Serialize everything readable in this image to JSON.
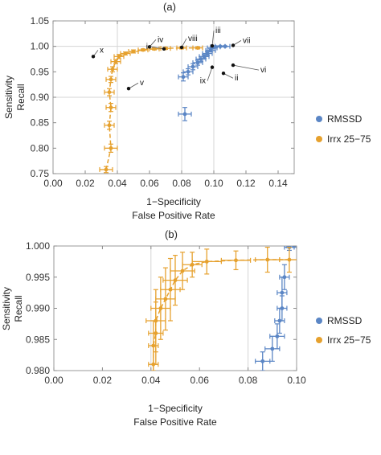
{
  "colors": {
    "rmssd": "#5b86c5",
    "irrx": "#e6a12e",
    "grid": "#d4d4d4",
    "frame": "#999999"
  },
  "chart_data": [
    {
      "panel_label": "(a)",
      "type": "scatter",
      "xlabel": "1−Specificity",
      "xlabel2": "False Positive Rate",
      "ylabel": "Sensitivity",
      "ylabel2": "Recall",
      "xlim": [
        0.0,
        0.15
      ],
      "ylim": [
        0.75,
        1.05
      ],
      "xticks": [
        "0.00",
        "0.02",
        "0.04",
        "0.06",
        "0.08",
        "0.10",
        "0.12",
        "0.14"
      ],
      "yticks": [
        "0.75",
        "0.80",
        "0.85",
        "0.90",
        "0.95",
        "1.00",
        "1.05"
      ],
      "grid_x": [
        0.04,
        0.08,
        0.1
      ],
      "grid_y": [
        0.9,
        1.0
      ],
      "legend": "right",
      "series": [
        {
          "name": "RMSSD",
          "color": "#5b86c5",
          "line": false,
          "points": [
            {
              "x": 0.082,
              "y": 0.867,
              "xe": 0.004,
              "ye": 0.013
            },
            {
              "x": 0.081,
              "y": 0.94,
              "xe": 0.003,
              "ye": 0.008
            },
            {
              "x": 0.084,
              "y": 0.95,
              "xe": 0.003,
              "ye": 0.006
            },
            {
              "x": 0.087,
              "y": 0.96,
              "xe": 0.003,
              "ye": 0.006
            },
            {
              "x": 0.09,
              "y": 0.968,
              "xe": 0.003,
              "ye": 0.005
            },
            {
              "x": 0.092,
              "y": 0.975,
              "xe": 0.003,
              "ye": 0.005
            },
            {
              "x": 0.094,
              "y": 0.98,
              "xe": 0.003,
              "ye": 0.004
            },
            {
              "x": 0.096,
              "y": 0.986,
              "xe": 0.003,
              "ye": 0.004
            },
            {
              "x": 0.098,
              "y": 0.992,
              "xe": 0.003,
              "ye": 0.003
            },
            {
              "x": 0.099,
              "y": 0.997,
              "xe": 0.003,
              "ye": 0.002
            },
            {
              "x": 0.101,
              "y": 0.999,
              "xe": 0.003,
              "ye": 0.002
            },
            {
              "x": 0.104,
              "y": 1.0,
              "xe": 0.003,
              "ye": 0.001
            },
            {
              "x": 0.107,
              "y": 1.0,
              "xe": 0.003,
              "ye": 0.001
            }
          ]
        },
        {
          "name": "Irrx 25−75",
          "color": "#e6a12e",
          "line": true,
          "points": [
            {
              "x": 0.033,
              "y": 0.758,
              "xe": 0.004,
              "ye": 0.006
            },
            {
              "x": 0.036,
              "y": 0.8,
              "xe": 0.004,
              "ye": 0.008
            },
            {
              "x": 0.035,
              "y": 0.845,
              "xe": 0.003,
              "ye": 0.008
            },
            {
              "x": 0.036,
              "y": 0.88,
              "xe": 0.003,
              "ye": 0.008
            },
            {
              "x": 0.035,
              "y": 0.91,
              "xe": 0.003,
              "ye": 0.007
            },
            {
              "x": 0.036,
              "y": 0.935,
              "xe": 0.003,
              "ye": 0.006
            },
            {
              "x": 0.037,
              "y": 0.955,
              "xe": 0.003,
              "ye": 0.005
            },
            {
              "x": 0.039,
              "y": 0.97,
              "xe": 0.003,
              "ye": 0.004
            },
            {
              "x": 0.041,
              "y": 0.98,
              "xe": 0.003,
              "ye": 0.004
            },
            {
              "x": 0.045,
              "y": 0.986,
              "xe": 0.003,
              "ye": 0.003
            },
            {
              "x": 0.05,
              "y": 0.99,
              "xe": 0.003,
              "ye": 0.003
            },
            {
              "x": 0.056,
              "y": 0.993,
              "xe": 0.003,
              "ye": 0.002
            },
            {
              "x": 0.063,
              "y": 0.995,
              "xe": 0.003,
              "ye": 0.002
            },
            {
              "x": 0.07,
              "y": 0.996,
              "xe": 0.003,
              "ye": 0.002
            },
            {
              "x": 0.08,
              "y": 0.997,
              "xe": 0.003,
              "ye": 0.002
            },
            {
              "x": 0.09,
              "y": 0.997,
              "xe": 0.003,
              "ye": 0.002
            }
          ]
        }
      ],
      "annotations": [
        {
          "label": "x",
          "x": 0.025,
          "y": 0.98,
          "dx": 6,
          "dy": -8
        },
        {
          "label": "iv",
          "x": 0.06,
          "y": 0.999,
          "dx": 8,
          "dy": -9
        },
        {
          "label": "i",
          "x": 0.069,
          "y": 0.995,
          "dx": -18,
          "dy": -3
        },
        {
          "label": "viii",
          "x": 0.08,
          "y": 0.998,
          "dx": 6,
          "dy": -11
        },
        {
          "label": "iii",
          "x": 0.099,
          "y": 1.001,
          "dx": 2,
          "dy": -19
        },
        {
          "label": "vii",
          "x": 0.112,
          "y": 1.002,
          "dx": 10,
          "dy": -6
        },
        {
          "label": "vi",
          "x": 0.112,
          "y": 0.963,
          "dx": 32,
          "dy": 6
        },
        {
          "label": "ix",
          "x": 0.099,
          "y": 0.959,
          "dx": -6,
          "dy": 17
        },
        {
          "label": "ii",
          "x": 0.106,
          "y": 0.947,
          "dx": 12,
          "dy": 6
        },
        {
          "label": "v",
          "x": 0.047,
          "y": 0.917,
          "dx": 12,
          "dy": -7
        }
      ]
    },
    {
      "panel_label": "(b)",
      "type": "scatter",
      "xlabel": "1−Specificity",
      "xlabel2": "False Positive Rate",
      "ylabel": "Sensitivity",
      "ylabel2": "Recall",
      "xlim": [
        0.0,
        0.1
      ],
      "ylim": [
        0.98,
        1.0
      ],
      "xticks": [
        "0.00",
        "0.02",
        "0.04",
        "0.06",
        "0.08",
        "0.10"
      ],
      "yticks": [
        "0.980",
        "0.985",
        "0.990",
        "0.995",
        "1.000"
      ],
      "grid_x": [
        0.04,
        0.08
      ],
      "grid_y": [],
      "legend": "right",
      "series": [
        {
          "name": "RMSSD",
          "color": "#5b86c5",
          "line": false,
          "points": [
            {
              "x": 0.086,
              "y": 0.9815,
              "xe": 0.003,
              "ye": 0.0015
            },
            {
              "x": 0.09,
              "y": 0.9835,
              "xe": 0.003,
              "ye": 0.002
            },
            {
              "x": 0.092,
              "y": 0.9855,
              "xe": 0.003,
              "ye": 0.002
            },
            {
              "x": 0.093,
              "y": 0.988,
              "xe": 0.002,
              "ye": 0.002
            },
            {
              "x": 0.094,
              "y": 0.99,
              "xe": 0.002,
              "ye": 0.002
            },
            {
              "x": 0.094,
              "y": 0.9925,
              "xe": 0.002,
              "ye": 0.0025
            },
            {
              "x": 0.095,
              "y": 0.995,
              "xe": 0.002,
              "ye": 0.002
            },
            {
              "x": 0.097,
              "y": 0.9998,
              "xe": 0.002,
              "ye": 0.0005
            },
            {
              "x": 0.099,
              "y": 1.0,
              "xe": 0.003,
              "ye": 0.0002
            }
          ]
        },
        {
          "name": "Irrx 25−75",
          "color": "#e6a12e",
          "line": true,
          "points": [
            {
              "x": 0.041,
              "y": 0.981,
              "xe": 0.002,
              "ye": 0.003
            },
            {
              "x": 0.041,
              "y": 0.984,
              "xe": 0.002,
              "ye": 0.004
            },
            {
              "x": 0.042,
              "y": 0.986,
              "xe": 0.003,
              "ye": 0.005
            },
            {
              "x": 0.042,
              "y": 0.988,
              "xe": 0.004,
              "ye": 0.005
            },
            {
              "x": 0.044,
              "y": 0.99,
              "xe": 0.004,
              "ye": 0.005
            },
            {
              "x": 0.046,
              "y": 0.9915,
              "xe": 0.004,
              "ye": 0.005
            },
            {
              "x": 0.048,
              "y": 0.993,
              "xe": 0.004,
              "ye": 0.005
            },
            {
              "x": 0.05,
              "y": 0.9945,
              "xe": 0.005,
              "ye": 0.004
            },
            {
              "x": 0.053,
              "y": 0.996,
              "xe": 0.005,
              "ye": 0.003
            },
            {
              "x": 0.057,
              "y": 0.997,
              "xe": 0.004,
              "ye": 0.002
            },
            {
              "x": 0.063,
              "y": 0.9975,
              "xe": 0.006,
              "ye": 0.002
            },
            {
              "x": 0.075,
              "y": 0.9977,
              "xe": 0.006,
              "ye": 0.0015
            },
            {
              "x": 0.088,
              "y": 0.9978,
              "xe": 0.005,
              "ye": 0.002
            },
            {
              "x": 0.097,
              "y": 0.9978,
              "xe": 0.004,
              "ye": 0.002
            }
          ]
        }
      ],
      "annotations": []
    }
  ]
}
